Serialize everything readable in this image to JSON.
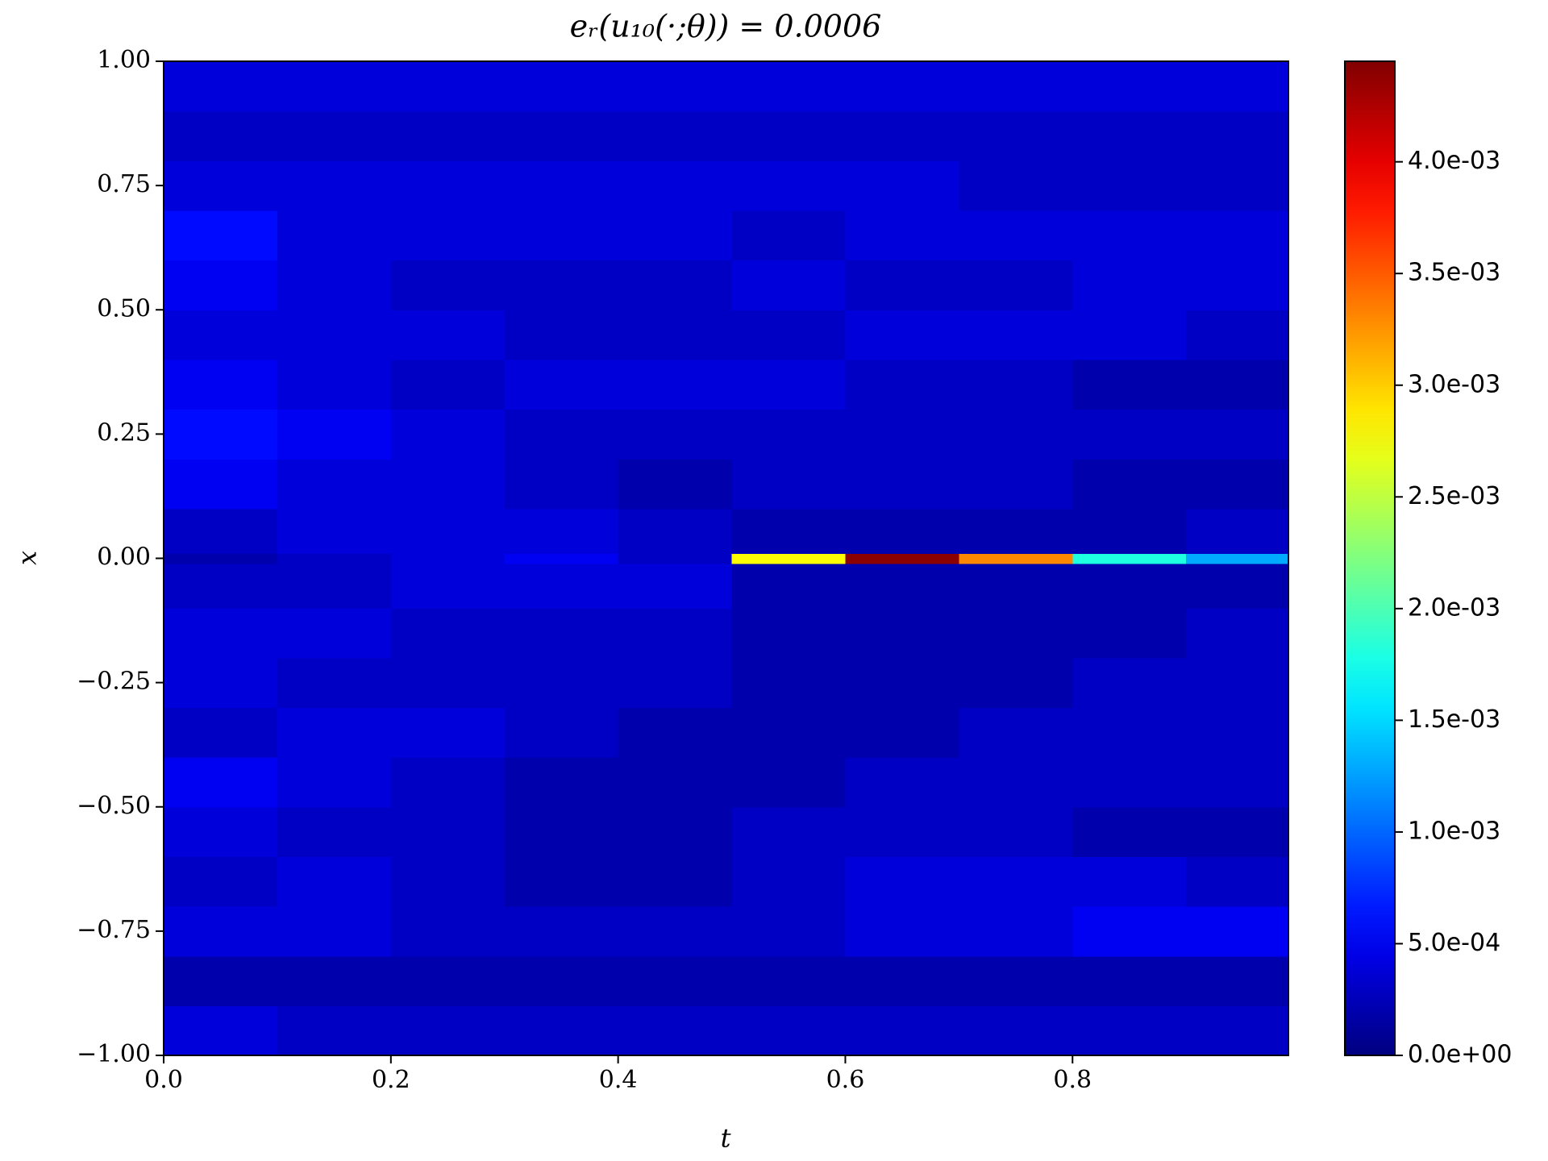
{
  "chart_data": {
    "type": "heatmap",
    "title": "eᵣ(u₁₀(·;θ)) = 0.0006",
    "xlabel": "t",
    "ylabel": "x",
    "colormap": "jet",
    "t_edges": [
      0,
      0.1,
      0.2,
      0.3,
      0.4,
      0.5,
      0.6,
      0.7,
      0.8,
      0.9,
      0.99
    ],
    "x_edges": [
      -1,
      -0.9,
      -0.8,
      -0.7,
      -0.6,
      -0.5,
      -0.4,
      -0.3,
      -0.2,
      -0.1,
      -0.01,
      0.01,
      0.1,
      0.2,
      0.3,
      0.4,
      0.5,
      0.6,
      0.7,
      0.8,
      0.9,
      1
    ],
    "values": [
      [
        0.0004,
        0.0003,
        0.0003,
        0.0003,
        0.0003,
        0.0003,
        0.0003,
        0.0003,
        0.0003,
        0.0003
      ],
      [
        0.0002,
        0.0002,
        0.0002,
        0.0002,
        0.0002,
        0.0002,
        0.0002,
        0.0002,
        0.0002,
        0.0002
      ],
      [
        0.0004,
        0.0004,
        0.0003,
        0.0003,
        0.0003,
        0.0003,
        0.0004,
        0.0004,
        0.0005,
        0.0005
      ],
      [
        0.0003,
        0.0004,
        0.0003,
        0.0002,
        0.0002,
        0.0003,
        0.0004,
        0.0004,
        0.0004,
        0.0003
      ],
      [
        0.0004,
        0.0003,
        0.0003,
        0.0002,
        0.0002,
        0.0003,
        0.0003,
        0.0003,
        0.0002,
        0.0002
      ],
      [
        0.0005,
        0.0004,
        0.0003,
        0.0002,
        0.0002,
        0.0002,
        0.0003,
        0.0003,
        0.0003,
        0.0003
      ],
      [
        0.0003,
        0.0004,
        0.0004,
        0.0003,
        0.0002,
        0.0002,
        0.0002,
        0.0003,
        0.0003,
        0.0003
      ],
      [
        0.0004,
        0.0003,
        0.0003,
        0.0003,
        0.0003,
        0.0002,
        0.0002,
        0.0002,
        0.0003,
        0.0003
      ],
      [
        0.0004,
        0.0004,
        0.0003,
        0.0003,
        0.0003,
        0.0002,
        0.0002,
        0.0002,
        0.0002,
        0.0003
      ],
      [
        0.0003,
        0.0003,
        0.0004,
        0.0004,
        0.0004,
        0.0002,
        0.0002,
        0.0002,
        0.0002,
        0.0002
      ],
      [
        0.0002,
        0.0003,
        0.0004,
        0.0005,
        0.0003,
        0.0028,
        0.0044,
        0.0033,
        0.0018,
        0.0013
      ],
      [
        0.0003,
        0.0004,
        0.0004,
        0.0004,
        0.0003,
        0.0002,
        0.0002,
        0.0002,
        0.0002,
        0.0003
      ],
      [
        0.0005,
        0.0004,
        0.0004,
        0.0003,
        0.0002,
        0.0003,
        0.0003,
        0.0003,
        0.0002,
        0.0002
      ],
      [
        0.0006,
        0.0005,
        0.0004,
        0.0003,
        0.0003,
        0.0003,
        0.0003,
        0.0003,
        0.0003,
        0.0003
      ],
      [
        0.0005,
        0.0004,
        0.0003,
        0.0004,
        0.0004,
        0.0004,
        0.0003,
        0.0003,
        0.0002,
        0.0002
      ],
      [
        0.0004,
        0.0004,
        0.0004,
        0.0003,
        0.0003,
        0.0003,
        0.0004,
        0.0004,
        0.0004,
        0.0003
      ],
      [
        0.0005,
        0.0004,
        0.0003,
        0.0003,
        0.0003,
        0.0004,
        0.0003,
        0.0003,
        0.0004,
        0.0004
      ],
      [
        0.0006,
        0.0004,
        0.0004,
        0.0004,
        0.0004,
        0.0003,
        0.0004,
        0.0004,
        0.0004,
        0.0004
      ],
      [
        0.0004,
        0.0004,
        0.0004,
        0.0004,
        0.0004,
        0.0004,
        0.0004,
        0.0003,
        0.0003,
        0.0003
      ],
      [
        0.0003,
        0.0003,
        0.0003,
        0.0003,
        0.0003,
        0.0003,
        0.0003,
        0.0003,
        0.0003,
        0.0003
      ],
      [
        0.0004,
        0.0004,
        0.0004,
        0.0004,
        0.0004,
        0.0004,
        0.0004,
        0.0004,
        0.0004,
        0.0004
      ]
    ],
    "xlim": [
      0,
      0.99
    ],
    "xticks": [
      {
        "value": 0,
        "label": "0.0"
      },
      0.2,
      0.4,
      0.6,
      0.8
    ],
    "ylim": [
      -1,
      1
    ],
    "yticks": [
      {
        "value": -1,
        "label": "−1.00"
      },
      {
        "value": -0.75,
        "label": "−0.75"
      },
      {
        "value": -0.5,
        "label": "−0.50"
      },
      {
        "value": -0.25,
        "label": "−0.25"
      },
      {
        "value": 0,
        "label": "0.00"
      },
      {
        "value": 0.25,
        "label": "0.25"
      },
      {
        "value": 0.5,
        "label": "0.50"
      },
      {
        "value": 0.75,
        "label": "0.75"
      },
      {
        "value": 1,
        "label": "1.00"
      }
    ],
    "clim": [
      0,
      0.00445
    ],
    "cticks": [
      {
        "value": 0,
        "label": "0.0e+00"
      },
      {
        "value": 0.0005,
        "label": "5.0e-04"
      },
      {
        "value": 0.001,
        "label": "1.0e-03"
      },
      {
        "value": 0.0015,
        "label": "1.5e-03"
      },
      {
        "value": 0.002,
        "label": "2.0e-03"
      },
      {
        "value": 0.0025,
        "label": "2.5e-03"
      },
      {
        "value": 0.003,
        "label": "3.0e-03"
      },
      {
        "value": 0.0035,
        "label": "3.5e-03"
      },
      {
        "value": 0.004,
        "label": "4.0e-03"
      }
    ]
  }
}
